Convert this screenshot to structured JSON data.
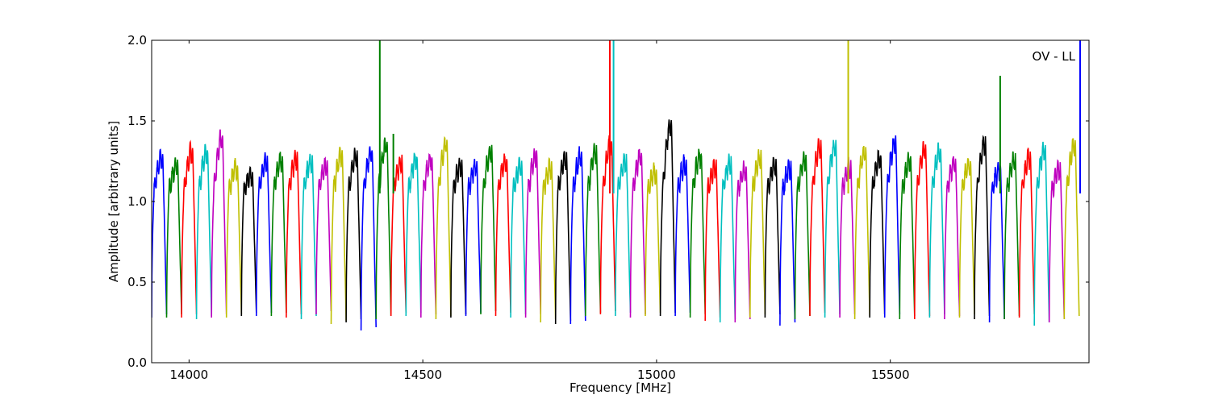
{
  "chart_data": {
    "type": "line",
    "xlabel": "Frequency [MHz]",
    "ylabel": "Amplitude [arbitrary units]",
    "annotation": "OV - LL",
    "xlim": [
      13920,
      15925
    ],
    "ylim": [
      0.0,
      2.0
    ],
    "x_ticks": [
      14000,
      14500,
      15000,
      15500
    ],
    "y_ticks": [
      0.0,
      0.5,
      1.0,
      1.5,
      2.0
    ],
    "grid": false,
    "color_cycle": [
      "#0000ff",
      "#008000",
      "#ff0000",
      "#00bfbf",
      "#bf00bf",
      "#bfbf00",
      "#000000"
    ],
    "band_edges": [
      13920,
      13952,
      13984,
      14016,
      14048,
      14080,
      14112,
      14144,
      14176,
      14208,
      14240,
      14272,
      14304,
      14336,
      14368,
      14400,
      14432,
      14464,
      14496,
      14528,
      14560,
      14592,
      14624,
      14656,
      14688,
      14720,
      14752,
      14784,
      14816,
      14848,
      14880,
      14912,
      14944,
      14976,
      15008,
      15040,
      15072,
      15104,
      15136,
      15168,
      15200,
      15232,
      15264,
      15296,
      15328,
      15360,
      15392,
      15424,
      15456,
      15488,
      15520,
      15552,
      15584,
      15616,
      15648,
      15680,
      15712,
      15744,
      15776,
      15808,
      15840,
      15872,
      15904
    ],
    "band_peaks": [
      1.27,
      1.22,
      1.31,
      1.3,
      1.39,
      1.21,
      1.17,
      1.24,
      1.26,
      1.27,
      1.25,
      1.23,
      1.28,
      1.28,
      1.3,
      1.35,
      1.24,
      1.26,
      1.26,
      1.36,
      1.22,
      1.22,
      1.31,
      1.25,
      1.22,
      1.28,
      1.21,
      1.26,
      1.28,
      1.3,
      1.36,
      1.25,
      1.28,
      1.18,
      1.47,
      1.23,
      1.28,
      1.21,
      1.23,
      1.2,
      1.27,
      1.23,
      1.2,
      1.26,
      1.34,
      1.34,
      1.21,
      1.3,
      1.27,
      1.36,
      1.25,
      1.32,
      1.31,
      1.24,
      1.23,
      1.36,
      1.2,
      1.25,
      1.27,
      1.32,
      1.2,
      1.35
    ],
    "band_minima": [
      0.28,
      0.28,
      0.28,
      0.27,
      0.28,
      0.28,
      0.29,
      0.29,
      0.29,
      0.28,
      0.27,
      0.3,
      0.24,
      0.25,
      0.2,
      0.27,
      0.29,
      0.29,
      0.28,
      0.27,
      0.28,
      0.29,
      0.3,
      0.29,
      0.28,
      0.28,
      0.25,
      0.24,
      0.24,
      0.29,
      0.3,
      0.29,
      0.28,
      0.29,
      0.29,
      0.29,
      0.28,
      0.26,
      0.25,
      0.25,
      0.28,
      0.28,
      0.23,
      0.27,
      0.29,
      0.28,
      0.28,
      0.27,
      0.28,
      0.28,
      0.27,
      0.27,
      0.28,
      0.27,
      0.28,
      0.27,
      0.25,
      0.27,
      0.28,
      0.23,
      0.25,
      0.27
    ],
    "spikes": [
      {
        "x": 14408,
        "y": 2.0,
        "color": "#008000"
      },
      {
        "x": 14437,
        "y": 1.42,
        "color": "#008000"
      },
      {
        "x": 14900,
        "y": 2.0,
        "color": "#ff0000"
      },
      {
        "x": 14908,
        "y": 2.0,
        "color": "#00bfbf"
      },
      {
        "x": 15410,
        "y": 2.0,
        "color": "#bfbf00"
      },
      {
        "x": 15735,
        "y": 1.78,
        "color": "#008000"
      },
      {
        "x": 15906,
        "y": 2.0,
        "color": "#0000ff"
      }
    ]
  }
}
